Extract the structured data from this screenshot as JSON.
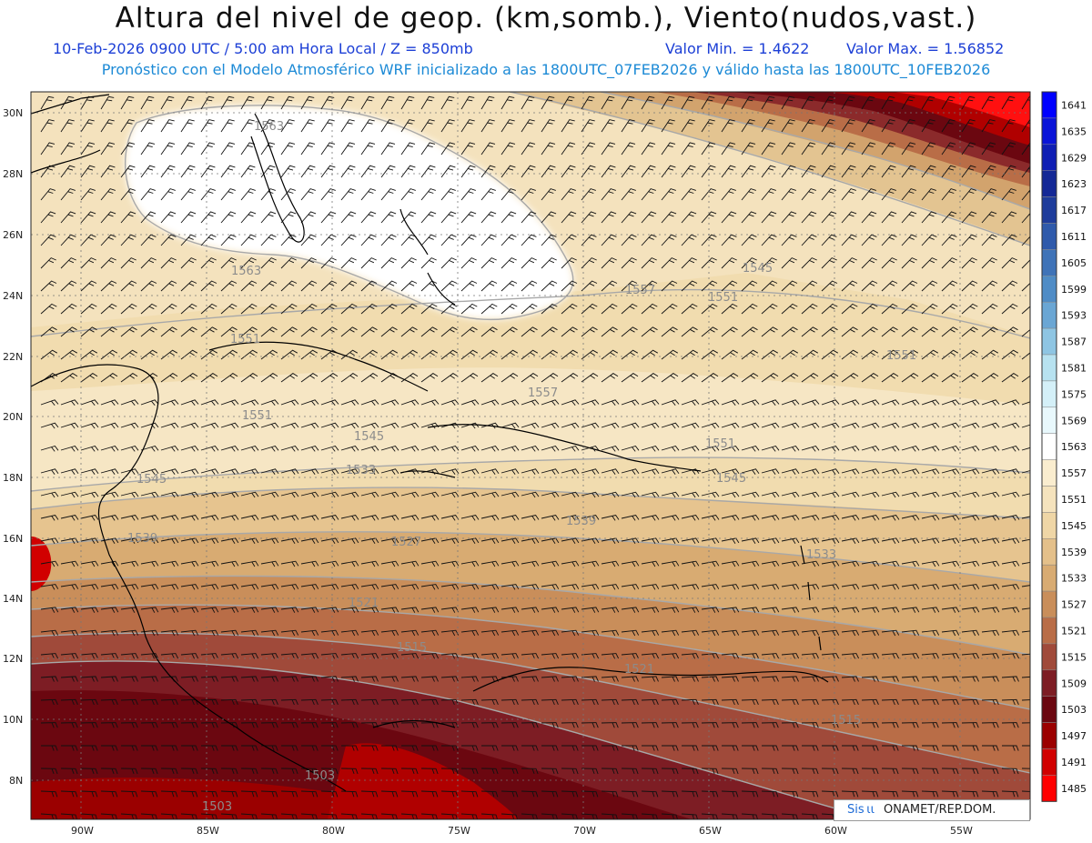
{
  "header": {
    "title": "Altura del nivel de geop. (km,somb.), Viento(nudos,vast.)",
    "date_time": "10-Feb-2026  0900 UTC / 5:00 am Hora Local / Z = 850mb",
    "min_value": "Valor Min. = 1.4622",
    "max_value": "Valor Max. = 1.56852",
    "model_info": "Pronóstico con el Modelo Atmosférico WRF inicializado a las 1800UTC_07FEB2026 y válido hasta las  1800UTC_10FEB2026"
  },
  "axes": {
    "lat_labels": [
      "30N",
      "28N",
      "26N",
      "24N",
      "22N",
      "20N",
      "18N",
      "16N",
      "14N",
      "12N",
      "10N",
      "8N"
    ],
    "lon_labels": [
      "90W",
      "85W",
      "80W",
      "75W",
      "70W",
      "65W",
      "60W",
      "55W"
    ]
  },
  "colorbar": {
    "levels": [
      "1641",
      "1635",
      "1629",
      "1623",
      "1617",
      "1611",
      "1605",
      "1599",
      "1593",
      "1587",
      "1581",
      "1575",
      "1569",
      "1563",
      "1557",
      "1551",
      "1545",
      "1539",
      "1533",
      "1527",
      "1521",
      "1515",
      "1509",
      "1503",
      "1497",
      "1491",
      "1485"
    ],
    "colors": [
      "#0000ff",
      "#0a14d8",
      "#0f1eb4",
      "#142896",
      "#1e3c9b",
      "#2f5aab",
      "#3f73b8",
      "#4f8cc6",
      "#6aa6d4",
      "#8ec5e3",
      "#b7e2f0",
      "#d4f0f8",
      "#e8f8fc",
      "#ffffff",
      "#faedcf",
      "#f5e3bd",
      "#efd6a6",
      "#e4c08a",
      "#d8ab72",
      "#c98e5a",
      "#b96d47",
      "#a04a3a",
      "#7d1d24",
      "#6b0710",
      "#9b0000",
      "#d10000",
      "#ff0000"
    ]
  },
  "contour_labels": [
    "1563",
    "1563",
    "1551",
    "1551",
    "1545",
    "1545",
    "1539",
    "1533",
    "1527",
    "1521",
    "1515",
    "1503",
    "1503",
    "1557",
    "1551",
    "1545",
    "1557",
    "1551",
    "1545",
    "1551",
    "1533",
    "1539",
    "1521",
    "1515"
  ],
  "credit": {
    "left": "Sis ιι",
    "right": "ONAMET/REP.DOM."
  }
}
